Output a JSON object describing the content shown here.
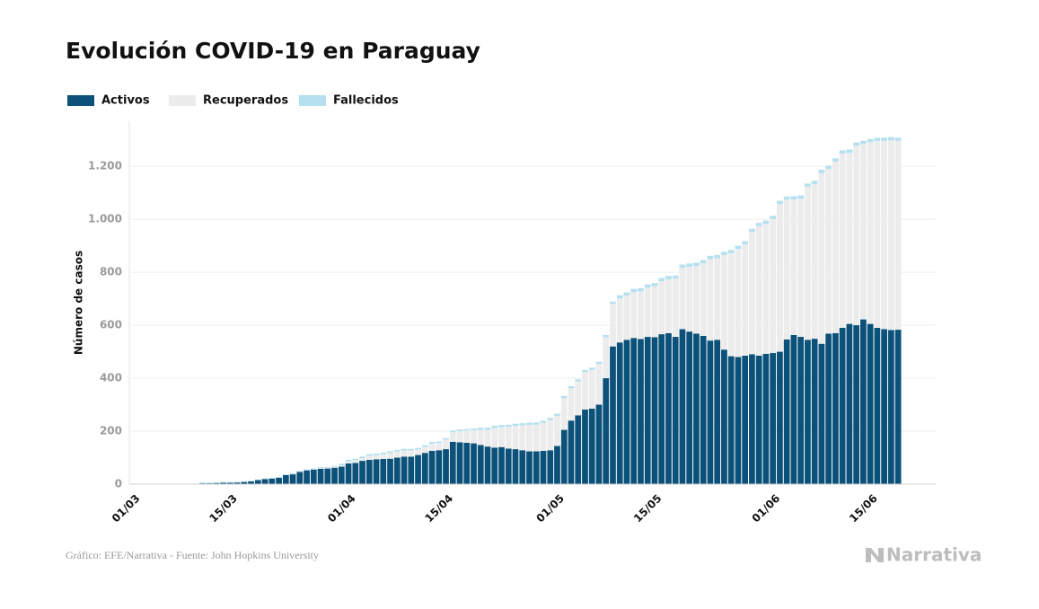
{
  "chart_data": {
    "type": "stacked_bar",
    "title": "Evolución COVID-19 en Paraguay",
    "y_label": "Número de casos",
    "source": "Gráfico: EFE/Narrativa - Fuente: John Hopkins University",
    "brand": "Narrativa",
    "categories": [
      "01/03",
      null,
      null,
      null,
      null,
      null,
      null,
      null,
      null,
      null,
      null,
      null,
      null,
      null,
      "15/03",
      null,
      null,
      null,
      null,
      null,
      null,
      null,
      null,
      null,
      null,
      null,
      null,
      null,
      null,
      null,
      null,
      "01/04",
      null,
      null,
      null,
      null,
      null,
      null,
      null,
      null,
      null,
      null,
      null,
      null,
      null,
      "15/04",
      null,
      null,
      null,
      null,
      null,
      null,
      null,
      null,
      null,
      null,
      null,
      null,
      null,
      null,
      null,
      "01/05",
      null,
      null,
      null,
      null,
      null,
      null,
      null,
      null,
      null,
      null,
      null,
      null,
      null,
      "15/05",
      null,
      null,
      null,
      null,
      null,
      null,
      null,
      null,
      null,
      null,
      null,
      null,
      null,
      null,
      null,
      null,
      "01/06",
      null,
      null,
      null,
      null,
      null,
      null,
      null,
      null,
      null,
      null,
      null,
      null,
      null,
      "15/06",
      null,
      null,
      null,
      null
    ],
    "series": [
      {
        "name": "Activos",
        "color": "#0b5179",
        "values": [
          0,
          0,
          0,
          0,
          0,
          0,
          0,
          0,
          0,
          0,
          3,
          3,
          4,
          5,
          5,
          6,
          8,
          10,
          15,
          19,
          21,
          24,
          34,
          37,
          46,
          52,
          55,
          58,
          59,
          62,
          66,
          78,
          80,
          88,
          92,
          94,
          95,
          96,
          100,
          104,
          104,
          110,
          118,
          126,
          128,
          132,
          160,
          158,
          156,
          154,
          148,
          142,
          138,
          140,
          134,
          132,
          128,
          124,
          124,
          126,
          128,
          144,
          205,
          240,
          260,
          282,
          285,
          300,
          400,
          520,
          535,
          545,
          552,
          548,
          556,
          555,
          566,
          570,
          556,
          585,
          576,
          568,
          560,
          542,
          545,
          508,
          483,
          480,
          485,
          490,
          485,
          492,
          495,
          500,
          546,
          563,
          556,
          545,
          549,
          530,
          568,
          570,
          590,
          605,
          600,
          622,
          605,
          590,
          585,
          582,
          583
        ]
      },
      {
        "name": "Recuperados",
        "color": "#ececec",
        "values": [
          0,
          0,
          0,
          0,
          0,
          0,
          0,
          0,
          0,
          0,
          0,
          0,
          0,
          0,
          0,
          0,
          0,
          0,
          0,
          0,
          0,
          0,
          0,
          1,
          1,
          1,
          1,
          3,
          3,
          4,
          5,
          8,
          10,
          10,
          15,
          15,
          18,
          22,
          23,
          23,
          23,
          21,
          23,
          27,
          27,
          36,
          36,
          42,
          46,
          50,
          57,
          63,
          74,
          75,
          82,
          88,
          94,
          100,
          101,
          105,
          114,
          114,
          120,
          122,
          128,
          141,
          147,
          154,
          155,
          161,
          166,
          167,
          173,
          180,
          186,
          192,
          200,
          204,
          220,
          232,
          245,
          256,
          274,
          308,
          308,
          357,
          389,
          408,
          420,
          462,
          489,
          491,
          506,
          558,
          528,
          512,
          522,
          578,
          584,
          645,
          622,
          648,
          658,
          646,
          678,
          662,
          686,
          706,
          711,
          716,
          713
        ]
      },
      {
        "name": "Fallecidos",
        "color": "#b4e0ef",
        "values": [
          0,
          0,
          0,
          0,
          0,
          0,
          0,
          0,
          0,
          0,
          3,
          3,
          3,
          3,
          3,
          3,
          3,
          3,
          3,
          3,
          3,
          3,
          3,
          3,
          3,
          3,
          3,
          3,
          3,
          3,
          6,
          6,
          6,
          6,
          6,
          6,
          6,
          6,
          6,
          6,
          6,
          6,
          6,
          6,
          6,
          6,
          6,
          6,
          6,
          6,
          8,
          8,
          8,
          8,
          8,
          8,
          8,
          8,
          8,
          8,
          8,
          8,
          8,
          8,
          8,
          8,
          8,
          8,
          8,
          8,
          12,
          12,
          12,
          12,
          12,
          12,
          12,
          12,
          12,
          12,
          12,
          12,
          12,
          12,
          12,
          12,
          12,
          12,
          12,
          12,
          12,
          12,
          12,
          12,
          12,
          12,
          12,
          12,
          12,
          12,
          12,
          12,
          12,
          12,
          12,
          12,
          12,
          12,
          12,
          12,
          12
        ]
      }
    ],
    "ylim": [
      0,
      1370
    ],
    "yticks": [
      0,
      200,
      400,
      600,
      800,
      {
        "value": 1000,
        "label": "1.000"
      },
      {
        "value": 1200,
        "label": "1.200"
      }
    ],
    "grid": true
  }
}
